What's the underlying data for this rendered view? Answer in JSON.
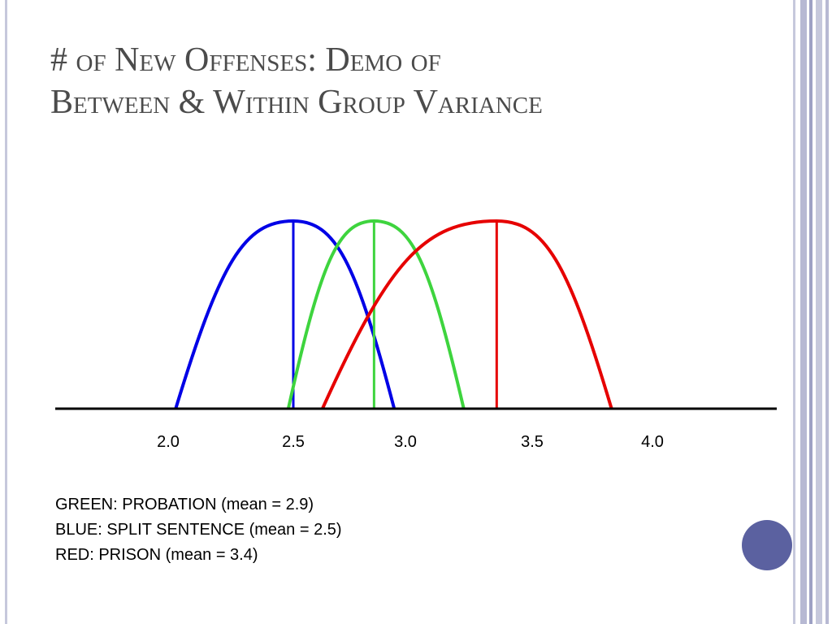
{
  "slide": {
    "title_line1": "# of New Offenses: Demo of",
    "title_line2": "Between & Within Group Variance"
  },
  "chart_data": {
    "type": "line",
    "title": "",
    "xlabel": "",
    "ylabel": "",
    "x_ticks": [
      "2.0",
      "2.5",
      "3.0",
      "3.5",
      "4.0"
    ],
    "x_tick_values": [
      2.0,
      2.5,
      3.0,
      3.5,
      4.0
    ],
    "grid": false,
    "series": [
      {
        "name": "SPLIT SENTENCE",
        "color": "#0000e6",
        "mean": 2.5,
        "range": [
          2.03,
          2.95
        ]
      },
      {
        "name": "PROBATION",
        "color": "#3ed43e",
        "mean": 2.86,
        "range": [
          2.48,
          3.23
        ]
      },
      {
        "name": "PRISON",
        "color": "#e60000",
        "mean": 3.36,
        "range": [
          2.63,
          3.83
        ]
      }
    ]
  },
  "legend": [
    "GREEN: PROBATION (mean = 2.9)",
    "BLUE: SPLIT SENTENCE (mean = 2.5)",
    "RED: PRISON (mean = 3.4)"
  ],
  "colors": {
    "title": "#4b4b4b",
    "accent": "#5b61a0",
    "border": "#c6c8dc"
  }
}
